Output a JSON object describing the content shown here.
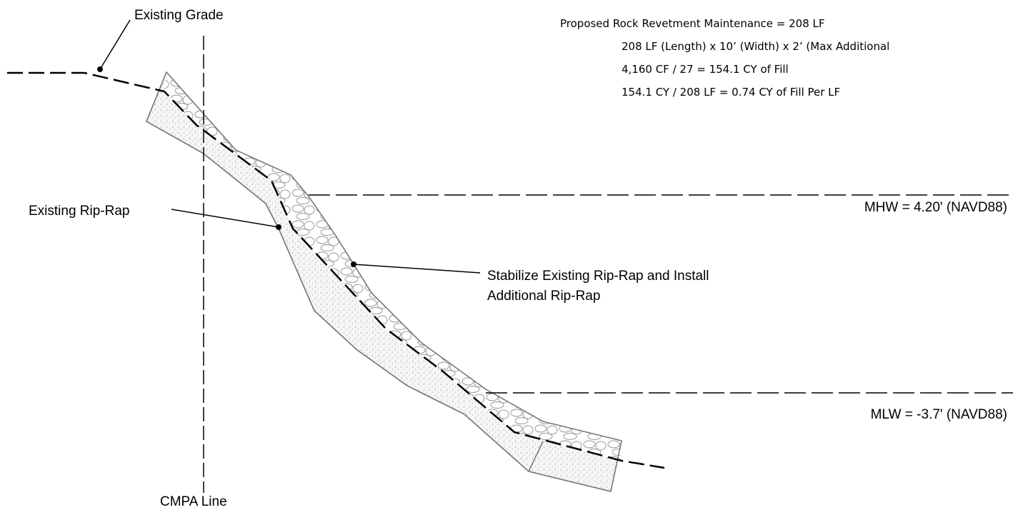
{
  "labels": {
    "existing_grade": "Existing Grade",
    "existing_rip_rap": "Existing Rip-Rap",
    "stabilize": [
      "Stabilize Existing Rip-Rap and Install",
      "Additional Rip-Rap"
    ],
    "mhw": "MHW = 4.20' (NAVD88)",
    "mlw": "MLW = -3.7' (NAVD88)",
    "cmpa_line": "CMPA Line"
  },
  "notes": [
    "Proposed Rock Revetment Maintenance = 208 LF",
    "208 LF (Length) x 10’ (Width) x 2’ (Max Additional",
    "4,160 CF / 27 = 154.1 CY of Fill",
    "154.1 CY / 208 LF = 0.74 CY of Fill Per LF"
  ]
}
